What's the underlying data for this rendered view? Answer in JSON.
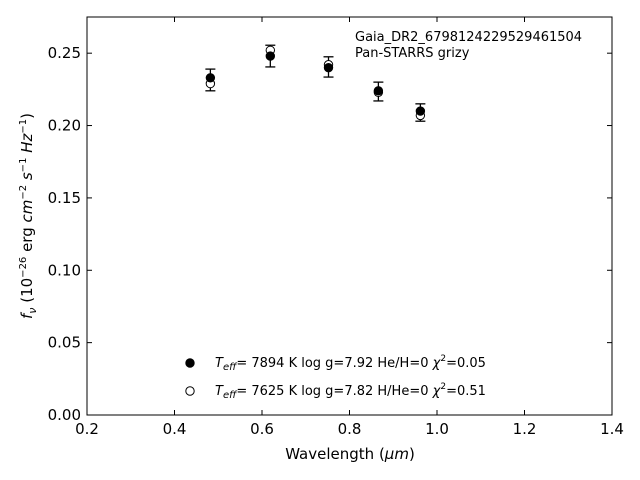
{
  "chart_data": {
    "type": "scatter",
    "annotations": [
      "Gaia_DR2_6798124229529461504",
      "Pan-STARRS grizy"
    ],
    "xlabel_text": "Wavelength (",
    "xlabel_unit": "μm",
    "xlabel_close": ")",
    "ylabel_parts": {
      "f": "f",
      "nu": "ν",
      "open": " (10",
      "exp26": "−26",
      "erg": " erg ",
      "cm": "cm",
      "exp2": "−2",
      "s": " s",
      "exp1": "−1",
      "hz": " Hz",
      "exp1b": "−1",
      "close": ")"
    },
    "xlim": [
      0.2,
      1.4
    ],
    "ylim": [
      0.0,
      0.275
    ],
    "xticks": [
      0.2,
      0.4,
      0.6,
      0.8,
      1.0,
      1.2,
      1.4
    ],
    "xtick_labels": [
      "0.2",
      "0.4",
      "0.6",
      "0.8",
      "1.0",
      "1.2",
      "1.4"
    ],
    "yticks": [
      0.0,
      0.05,
      0.1,
      0.15,
      0.2,
      0.25
    ],
    "ytick_labels": [
      "0.00",
      "0.05",
      "0.10",
      "0.15",
      "0.20",
      "0.25"
    ],
    "grid": false,
    "observed": {
      "x": [
        0.482,
        0.619,
        0.752,
        0.866,
        0.962
      ],
      "y": [
        0.2315,
        0.248,
        0.2405,
        0.2235,
        0.209
      ],
      "err": [
        0.0075,
        0.0075,
        0.007,
        0.0065,
        0.006
      ]
    },
    "series": [
      {
        "marker": "filled",
        "x": [
          0.482,
          0.619,
          0.752,
          0.866,
          0.962
        ],
        "y": [
          0.233,
          0.248,
          0.24,
          0.224,
          0.21
        ],
        "legend": {
          "T": "T",
          "eff": "eff",
          "text1": "=  7894 K  log g=7.92  He/H=0  ",
          "chi": "χ",
          "two": "2",
          "text2": "=0.05"
        }
      },
      {
        "marker": "open",
        "x": [
          0.482,
          0.619,
          0.752,
          0.866,
          0.962
        ],
        "y": [
          0.229,
          0.252,
          0.242,
          0.223,
          0.207
        ],
        "legend": {
          "T": "T",
          "eff": "eff",
          "text1": "=  7625 K  log g=7.82  H/He=0  ",
          "chi": "χ",
          "two": "2",
          "text2": "=0.51"
        }
      }
    ]
  }
}
